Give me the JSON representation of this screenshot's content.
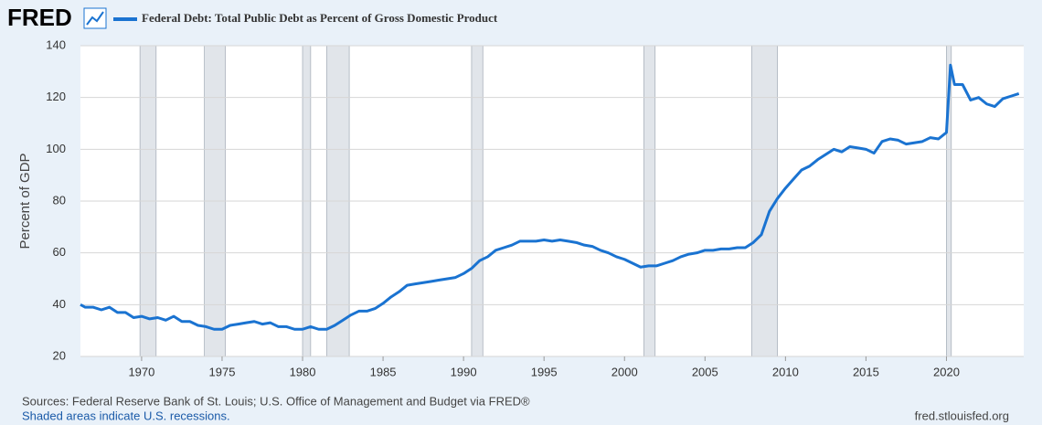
{
  "logo": "FRED",
  "chart_data": {
    "type": "line",
    "title": "Federal Debt: Total Public Debt as Percent of Gross Domestic Product",
    "ylabel": "Percent of GDP",
    "xlim": [
      1966.2,
      2024.8
    ],
    "ylim": [
      20,
      140
    ],
    "xticks": [
      1970,
      1975,
      1980,
      1985,
      1990,
      1995,
      2000,
      2005,
      2010,
      2015,
      2020
    ],
    "yticks": [
      20,
      40,
      60,
      80,
      100,
      120,
      140
    ],
    "grid": true,
    "recessions": [
      [
        1969.9,
        1970.9
      ],
      [
        1973.9,
        1975.2
      ],
      [
        1980.0,
        1980.5
      ],
      [
        1981.5,
        1982.9
      ],
      [
        1990.5,
        1991.2
      ],
      [
        2001.2,
        2001.9
      ],
      [
        2007.9,
        2009.5
      ],
      [
        2020.0,
        2020.3
      ]
    ],
    "x": [
      1966.2,
      1966.5,
      1967,
      1967.5,
      1968,
      1968.5,
      1969,
      1969.5,
      1970,
      1970.5,
      1971,
      1971.5,
      1972,
      1972.5,
      1973,
      1973.5,
      1974,
      1974.5,
      1975,
      1975.5,
      1976,
      1976.5,
      1977,
      1977.5,
      1978,
      1978.5,
      1979,
      1979.5,
      1980,
      1980.5,
      1981,
      1981.5,
      1982,
      1982.5,
      1983,
      1983.5,
      1984,
      1984.5,
      1985,
      1985.5,
      1986,
      1986.5,
      1987,
      1987.5,
      1988,
      1988.5,
      1989,
      1989.5,
      1990,
      1990.5,
      1991,
      1991.5,
      1992,
      1992.5,
      1993,
      1993.5,
      1994,
      1994.5,
      1995,
      1995.5,
      1996,
      1996.5,
      1997,
      1997.5,
      1998,
      1998.5,
      1999,
      1999.5,
      2000,
      2000.5,
      2001,
      2001.5,
      2002,
      2002.5,
      2003,
      2003.5,
      2004,
      2004.5,
      2005,
      2005.5,
      2006,
      2006.5,
      2007,
      2007.5,
      2008,
      2008.5,
      2009,
      2009.5,
      2010,
      2010.5,
      2011,
      2011.5,
      2012,
      2012.5,
      2013,
      2013.5,
      2014,
      2014.5,
      2015,
      2015.5,
      2016,
      2016.5,
      2017,
      2017.5,
      2018,
      2018.5,
      2019,
      2019.5,
      2020,
      2020.25,
      2020.5,
      2021,
      2021.5,
      2022,
      2022.5,
      2023,
      2023.5,
      2024,
      2024.5
    ],
    "series": [
      {
        "name": "Federal Debt: Total Public Debt as Percent of Gross Domestic Product",
        "color": "#1a73d1",
        "values": [
          40,
          39,
          39,
          38,
          39,
          37,
          37,
          35,
          35.5,
          34.5,
          35,
          34,
          35.5,
          33.5,
          33.5,
          32,
          31.5,
          30.5,
          30.5,
          32,
          32.5,
          33,
          33.5,
          32.5,
          33,
          31.5,
          31.5,
          30.5,
          30.5,
          31.5,
          30.5,
          30.5,
          32,
          34,
          36,
          37.5,
          37.5,
          38.5,
          40.5,
          43,
          45,
          47.5,
          48,
          48.5,
          49,
          49.5,
          50,
          50.5,
          52,
          54,
          57,
          58.5,
          61,
          62,
          63,
          64.5,
          64.5,
          64.5,
          65,
          64.5,
          65,
          64.5,
          64,
          63,
          62.5,
          61,
          60,
          58.5,
          57.5,
          56,
          54.5,
          55,
          55,
          56,
          57,
          58.5,
          59.5,
          60,
          61,
          61,
          61.5,
          61.5,
          62,
          62,
          64,
          67,
          76,
          81,
          85,
          88.5,
          92,
          93.5,
          96,
          98,
          100,
          99,
          101,
          100.5,
          100,
          98.5,
          103,
          104,
          103.5,
          102,
          102.5,
          103,
          104.5,
          104,
          106.5,
          132.5,
          125,
          125,
          119,
          120,
          117.5,
          116.5,
          119.5,
          120.5,
          121.5
        ]
      }
    ]
  },
  "footer": {
    "source": "Sources: Federal Reserve Bank of St. Louis; U.S. Office of Management and Budget via FRED®",
    "note": "Shaded areas indicate U.S. recessions.",
    "url": "fred.stlouisfed.org"
  }
}
